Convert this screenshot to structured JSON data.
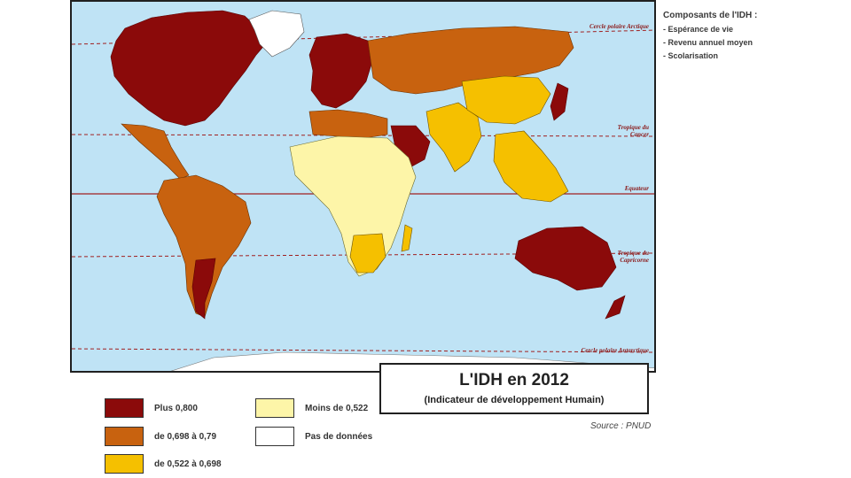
{
  "map": {
    "lines": {
      "arctic": "Cercle polaire Arctique",
      "tropic_cancer": "Tropique du\nCancer",
      "equator": "Equateur",
      "tropic_capricorn": "Tropique du\nCapricorne",
      "antarctic": "Cercle polaire Antarctique"
    },
    "colors": {
      "ocean": "#bfe3f5",
      "very_high": "#8b0a0a",
      "high": "#c8620f",
      "medium": "#f5c000",
      "low": "#fdf5a8",
      "no_data": "#ffffff",
      "line": "#a02020"
    }
  },
  "components": {
    "title": "Composants de l'IDH :",
    "items": [
      "- Espérance de vie",
      "- Revenu annuel moyen",
      "- Scolarisation"
    ]
  },
  "title_box": {
    "title": "L'IDH en 2012",
    "subtitle": "(Indicateur de développement Humain)"
  },
  "source": "Source : PNUD",
  "legend": [
    {
      "label": "Plus 0,800",
      "color": "#8b0a0a"
    },
    {
      "label": "de 0,698 à 0,79",
      "color": "#c8620f"
    },
    {
      "label": "de 0,522 à 0,698",
      "color": "#f5c000"
    },
    {
      "label": "Moins de 0,522",
      "color": "#fdf5a8"
    },
    {
      "label": "Pas de données",
      "color": "#ffffff"
    }
  ]
}
